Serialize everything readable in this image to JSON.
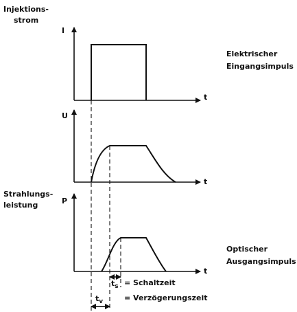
{
  "top": {
    "quantity": [
      "Injektions-",
      "strom"
    ],
    "axis_label": "I",
    "time_label": "t",
    "caption": [
      "Elektrischer",
      "Eingangsimpuls"
    ]
  },
  "middle": {
    "axis_label": "U",
    "time_label": "t"
  },
  "bottom": {
    "quantity": [
      "Strahlungs-",
      "leistung"
    ],
    "axis_label": "P",
    "time_label": "t",
    "caption": [
      "Optischer",
      "Ausgangsimpuls"
    ]
  },
  "legend": [
    {
      "symbol": "t",
      "subscript": "s",
      "text": "= Schaltzeit"
    },
    {
      "symbol": "t",
      "subscript": "v",
      "text": "= Verzögerungszeit"
    }
  ]
}
